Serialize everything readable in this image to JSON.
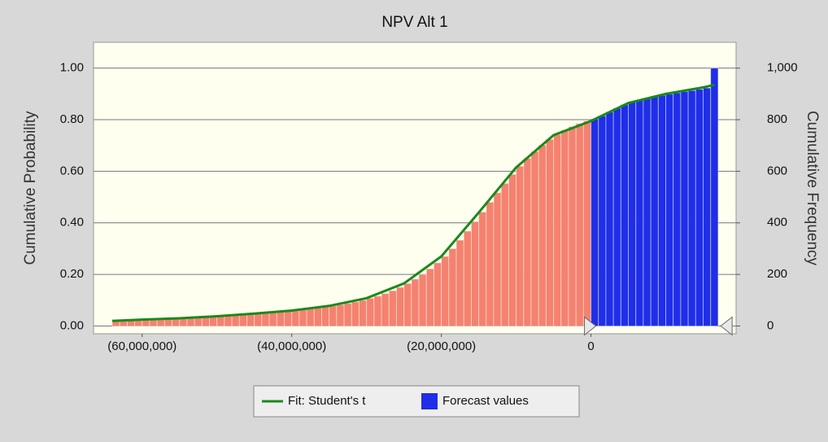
{
  "chart_data": {
    "type": "histogram",
    "title": "NPV Alt 1",
    "y_label": "Cumulative Probability",
    "y2_label": "Cumulative Frequency",
    "xlim": [
      -66500000,
      19400000
    ],
    "xticks": [
      {
        "value": -60000000,
        "label": "(60,000,000)"
      },
      {
        "value": -40000000,
        "label": "(40,000,000)"
      },
      {
        "value": -20000000,
        "label": "(20,000,000)"
      },
      0
    ],
    "ylim": [
      -0.03,
      1.1
    ],
    "yticks": [
      {
        "value": 0,
        "label": "0.00"
      },
      {
        "value": 0.2,
        "label": "0.20"
      },
      {
        "value": 0.4,
        "label": "0.40"
      },
      {
        "value": 0.6,
        "label": "0.60"
      },
      {
        "value": 0.8,
        "label": "0.80"
      },
      {
        "value": 1,
        "label": "1.00"
      }
    ],
    "y2lim": [
      -30,
      1100
    ],
    "y2ticks": [
      0,
      200,
      400,
      600,
      800,
      {
        "value": 1000,
        "label": "1,000"
      }
    ],
    "grid": true,
    "certainty_range": [
      0,
      18000000
    ],
    "outside_color": "#f4826f",
    "series": [
      {
        "name": "Forecast values",
        "type": "bar",
        "axis": "y2",
        "color": "#1f2ee8",
        "bins": [
          -64000000,
          -63000000,
          -62000000,
          -61000000,
          -60000000,
          -59000000,
          -58000000,
          -57000000,
          -56000000,
          -55000000,
          -54000000,
          -53000000,
          -52000000,
          -51000000,
          -50000000,
          -49000000,
          -48000000,
          -47000000,
          -46000000,
          -45000000,
          -44000000,
          -43000000,
          -42000000,
          -41000000,
          -40000000,
          -39000000,
          -38000000,
          -37000000,
          -36000000,
          -35000000,
          -34000000,
          -33000000,
          -32000000,
          -31000000,
          -30000000,
          -29000000,
          -28000000,
          -27000000,
          -26000000,
          -25000000,
          -24000000,
          -23000000,
          -22000000,
          -21000000,
          -20000000,
          -19000000,
          -18000000,
          -17000000,
          -16000000,
          -15000000,
          -14000000,
          -13000000,
          -12000000,
          -11000000,
          -10000000,
          -9000000,
          -8000000,
          -7000000,
          -6000000,
          -5000000,
          -4000000,
          -3000000,
          -2000000,
          -1000000,
          0,
          1000000,
          2000000,
          3000000,
          4000000,
          5000000,
          6000000,
          7000000,
          8000000,
          9000000,
          10000000,
          11000000,
          12000000,
          13000000,
          14000000,
          15000000,
          16000000,
          17000000
        ],
        "values": [
          25,
          25,
          25,
          26,
          27,
          28,
          28,
          29,
          30,
          31,
          32,
          33,
          35,
          36,
          38,
          40,
          42,
          44,
          46,
          48,
          50,
          52,
          55,
          57,
          60,
          63,
          66,
          70,
          74,
          78,
          83,
          88,
          94,
          100,
          108,
          116,
          126,
          137,
          150,
          165,
          182,
          200,
          222,
          245,
          270,
          300,
          333,
          368,
          405,
          442,
          480,
          517,
          553,
          588,
          620,
          650,
          677,
          702,
          724,
          743,
          760,
          773,
          785,
          795,
          803,
          815,
          830,
          845,
          858,
          868,
          876,
          883,
          889,
          894,
          899,
          904,
          909,
          913,
          918,
          923,
          1000
        ]
      },
      {
        "name": "Fit: Student's t",
        "type": "line",
        "axis": "y",
        "color": "#1a8a1a",
        "x": [
          -64000000,
          -60000000,
          -55000000,
          -50000000,
          -45000000,
          -40000000,
          -35000000,
          -30000000,
          -25000000,
          -20000000,
          -15000000,
          -10000000,
          -5000000,
          0,
          5000000,
          10000000,
          15000000,
          16500000
        ],
        "values": [
          0.02,
          0.025,
          0.03,
          0.038,
          0.048,
          0.06,
          0.078,
          0.108,
          0.165,
          0.27,
          0.44,
          0.615,
          0.74,
          0.795,
          0.865,
          0.9,
          0.925,
          0.935
        ]
      }
    ]
  }
}
